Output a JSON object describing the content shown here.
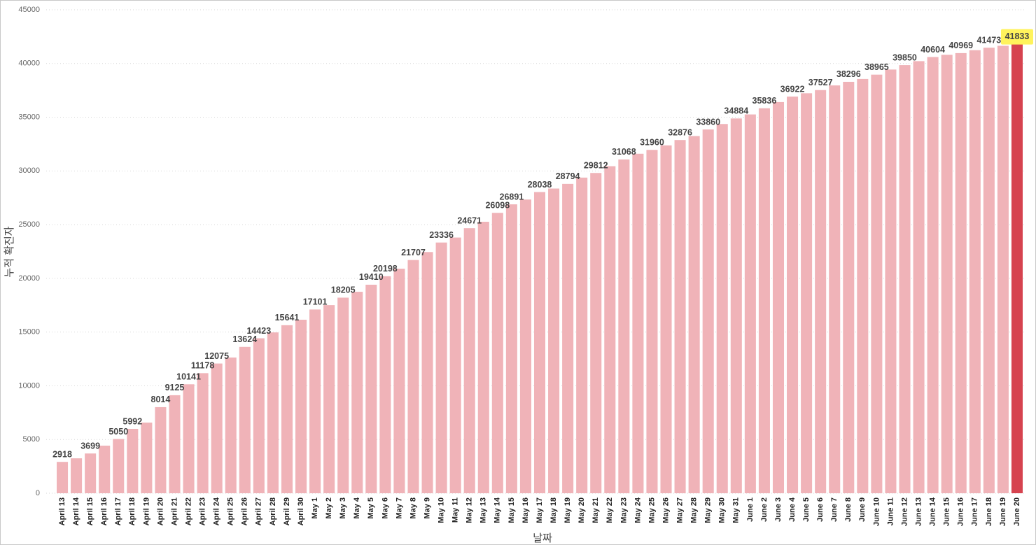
{
  "chart_data": {
    "type": "bar",
    "x_label": "날짜",
    "y_label": "누적 확진자",
    "categories": [
      "April 13",
      "April 14",
      "April 15",
      "April 16",
      "April 17",
      "April 18",
      "April 19",
      "April 20",
      "April 21",
      "April 22",
      "April 23",
      "April 24",
      "April 25",
      "April 26",
      "April 27",
      "April 28",
      "April 29",
      "April 30",
      "May 1",
      "May 2",
      "May 3",
      "May 4",
      "May 5",
      "May 6",
      "May 7",
      "May 8",
      "May 9",
      "May 10",
      "May 11",
      "May 12",
      "May 13",
      "May 14",
      "May 15",
      "May 16",
      "May 17",
      "May 18",
      "May 19",
      "May 20",
      "May 21",
      "May 22",
      "May 23",
      "May 24",
      "May 25",
      "May 26",
      "May 27",
      "May 28",
      "May 29",
      "May 30",
      "May 31",
      "June 1",
      "June 2",
      "June 3",
      "June 4",
      "June 5",
      "June 6",
      "June 7",
      "June 8",
      "June 9",
      "June 10",
      "June 11",
      "June 12",
      "June 13",
      "June 14",
      "June 15",
      "June 16",
      "June 17",
      "June 18",
      "June 19",
      "June 20"
    ],
    "values": [
      2918,
      3250,
      3699,
      4430,
      5050,
      5992,
      6575,
      8014,
      9125,
      10141,
      11178,
      12075,
      12630,
      13624,
      14423,
      14970,
      15641,
      16150,
      17101,
      17510,
      18205,
      18750,
      19410,
      20198,
      20900,
      21707,
      22450,
      23336,
      23800,
      24671,
      25270,
      26098,
      26891,
      27340,
      28038,
      28360,
      28794,
      29380,
      29812,
      30440,
      31068,
      31600,
      31960,
      32380,
      32876,
      33250,
      33860,
      34370,
      34884,
      35260,
      35836,
      36410,
      36922,
      37230,
      37527,
      37960,
      38296,
      38560,
      38965,
      39440,
      39850,
      40220,
      40604,
      40810,
      40969,
      41240,
      41473,
      41650,
      41833
    ],
    "value_labels": [
      "2918",
      null,
      "3699",
      null,
      "5050",
      "5992",
      null,
      "8014",
      "9125",
      "10141",
      "11178",
      "12075",
      null,
      "13624",
      "14423",
      null,
      "15641",
      null,
      "17101",
      null,
      "18205",
      null,
      "19410",
      "20198",
      null,
      "21707",
      null,
      "23336",
      null,
      "24671",
      null,
      "26098",
      "26891",
      null,
      "28038",
      null,
      "28794",
      null,
      "29812",
      null,
      "31068",
      null,
      "31960",
      null,
      "32876",
      null,
      "33860",
      null,
      "34884",
      null,
      "35836",
      null,
      "36922",
      null,
      "37527",
      null,
      "38296",
      null,
      "38965",
      null,
      "39850",
      null,
      "40604",
      null,
      "40969",
      null,
      "41473",
      null,
      "41833"
    ],
    "color": "#f0b3b8",
    "highlight": {
      "index": 68,
      "color": "#d6434f",
      "label_background": "#fff35c"
    },
    "ylim": [
      0,
      45000
    ],
    "yticks": [
      0,
      5000,
      10000,
      15000,
      20000,
      25000,
      30000,
      35000,
      40000,
      45000
    ],
    "grid": true
  }
}
